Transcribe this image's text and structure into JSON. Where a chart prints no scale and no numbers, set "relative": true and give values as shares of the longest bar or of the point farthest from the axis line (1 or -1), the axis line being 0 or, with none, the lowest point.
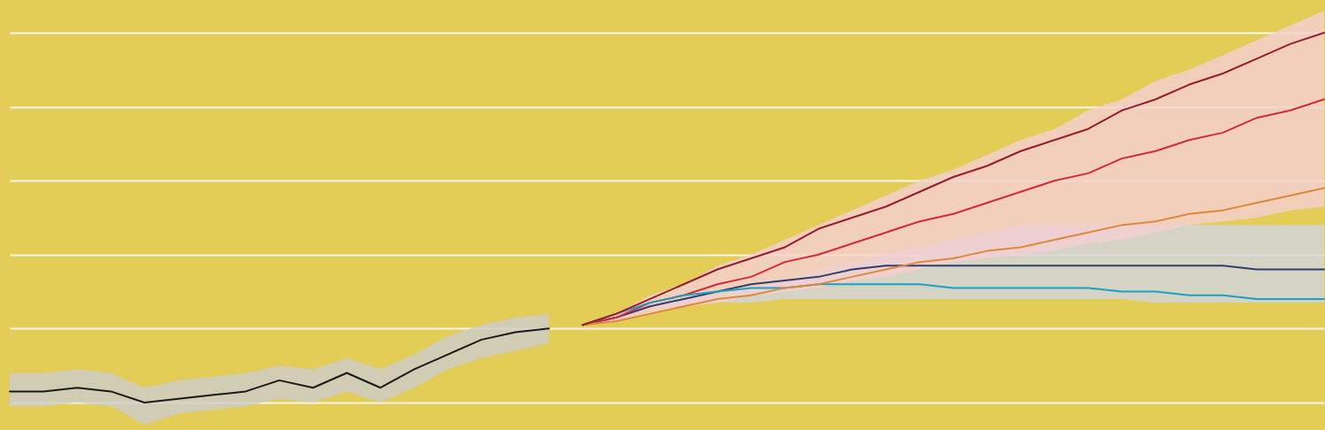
{
  "chart_data": {
    "type": "line",
    "relative": true,
    "grid": "y",
    "tick_labels": false,
    "categories": [
      null,
      null,
      null,
      null,
      null,
      null,
      null,
      null,
      null,
      null,
      null,
      null,
      null,
      null,
      null,
      null,
      null,
      null,
      null,
      null,
      null,
      null,
      null,
      null,
      null,
      null,
      null,
      null,
      null,
      null,
      null,
      null,
      null,
      null,
      null,
      null,
      null,
      null,
      null,
      null
    ],
    "series": [
      {
        "color": "#1a1a1a",
        "values": [
          0.03,
          0.03,
          0.04,
          0.03,
          0.0,
          0.01,
          0.02,
          0.03,
          0.06,
          0.04,
          0.08,
          0.04,
          0.09,
          0.13,
          0.17,
          0.19,
          0.2,
          null,
          null,
          null,
          null,
          null,
          null,
          null,
          null,
          null,
          null,
          null,
          null,
          null,
          null,
          null,
          null,
          null,
          null,
          null,
          null,
          null,
          null,
          null
        ],
        "lower": [
          -0.01,
          -0.01,
          0.0,
          -0.01,
          -0.06,
          -0.03,
          -0.02,
          -0.01,
          0.01,
          0.0,
          0.03,
          0.0,
          0.04,
          0.09,
          0.12,
          0.14,
          0.16,
          null,
          null,
          null,
          null,
          null,
          null,
          null,
          null,
          null,
          null,
          null,
          null,
          null,
          null,
          null,
          null,
          null,
          null,
          null,
          null,
          null,
          null,
          null
        ],
        "upper": [
          0.08,
          0.08,
          0.09,
          0.08,
          0.04,
          0.06,
          0.07,
          0.08,
          0.1,
          0.09,
          0.12,
          0.09,
          0.13,
          0.18,
          0.21,
          0.23,
          0.24,
          null,
          null,
          null,
          null,
          null,
          null,
          null,
          null,
          null,
          null,
          null,
          null,
          null,
          null,
          null,
          null,
          null,
          null,
          null,
          null,
          null,
          null,
          null
        ]
      },
      {
        "color": "#2e3f6e",
        "values": [
          null,
          null,
          null,
          null,
          null,
          null,
          null,
          null,
          null,
          null,
          null,
          null,
          null,
          null,
          null,
          null,
          null,
          0.21,
          0.23,
          0.26,
          0.28,
          0.3,
          0.32,
          0.33,
          0.34,
          0.36,
          0.37,
          0.37,
          0.37,
          0.37,
          0.37,
          0.37,
          0.37,
          0.37,
          0.37,
          0.37,
          0.37,
          0.36,
          0.36,
          0.36
        ],
        "lower": [
          null,
          null,
          null,
          null,
          null,
          null,
          null,
          null,
          null,
          null,
          null,
          null,
          null,
          null,
          null,
          null,
          null,
          0.21,
          0.23,
          0.26,
          0.26,
          0.27,
          0.27,
          0.28,
          0.28,
          0.28,
          0.28,
          0.28,
          0.28,
          0.28,
          0.28,
          0.28,
          0.28,
          0.28,
          0.27,
          0.27,
          0.27,
          0.27,
          0.27,
          0.27
        ],
        "upper": [
          null,
          null,
          null,
          null,
          null,
          null,
          null,
          null,
          null,
          null,
          null,
          null,
          null,
          null,
          null,
          null,
          null,
          0.21,
          0.23,
          0.26,
          0.28,
          0.29,
          0.31,
          0.33,
          0.36,
          0.38,
          0.4,
          0.42,
          0.44,
          0.46,
          0.48,
          0.48,
          0.48,
          0.48,
          0.48,
          0.48,
          0.48,
          0.48,
          0.48,
          0.48
        ]
      },
      {
        "color": "#d62a3a",
        "values": [
          null,
          null,
          null,
          null,
          null,
          null,
          null,
          null,
          null,
          null,
          null,
          null,
          null,
          null,
          null,
          null,
          null,
          0.21,
          0.23,
          0.27,
          0.29,
          0.32,
          0.34,
          0.38,
          0.4,
          0.43,
          0.46,
          0.49,
          0.51,
          0.54,
          0.57,
          0.6,
          0.62,
          0.66,
          0.68,
          0.71,
          0.73,
          0.77,
          0.79,
          0.82
        ],
        "lower": [
          null,
          null,
          null,
          null,
          null,
          null,
          null,
          null,
          null,
          null,
          null,
          null,
          null,
          null,
          null,
          null,
          null,
          0.21,
          0.22,
          0.24,
          0.26,
          0.27,
          0.29,
          0.3,
          0.31,
          0.33,
          0.34,
          0.36,
          0.38,
          0.39,
          0.4,
          0.41,
          0.43,
          0.44,
          0.46,
          0.48,
          0.49,
          0.5,
          0.52,
          0.53
        ],
        "upper": [
          null,
          null,
          null,
          null,
          null,
          null,
          null,
          null,
          null,
          null,
          null,
          null,
          null,
          null,
          null,
          null,
          null,
          0.21,
          0.24,
          0.29,
          0.32,
          0.37,
          0.4,
          0.44,
          0.48,
          0.52,
          0.56,
          0.6,
          0.63,
          0.67,
          0.71,
          0.74,
          0.79,
          0.82,
          0.87,
          0.9,
          0.94,
          0.98,
          1.02,
          1.06
        ]
      },
      {
        "color": "#1aa0c8",
        "values": [
          null,
          null,
          null,
          null,
          null,
          null,
          null,
          null,
          null,
          null,
          null,
          null,
          null,
          null,
          null,
          null,
          null,
          0.21,
          0.24,
          0.27,
          0.29,
          0.3,
          0.31,
          0.31,
          0.32,
          0.32,
          0.32,
          0.32,
          0.31,
          0.31,
          0.31,
          0.31,
          0.31,
          0.3,
          0.3,
          0.29,
          0.29,
          0.28,
          0.28,
          0.28
        ]
      },
      {
        "color": "#e0883a",
        "values": [
          null,
          null,
          null,
          null,
          null,
          null,
          null,
          null,
          null,
          null,
          null,
          null,
          null,
          null,
          null,
          null,
          null,
          0.21,
          0.22,
          0.24,
          0.26,
          0.28,
          0.29,
          0.31,
          0.32,
          0.34,
          0.36,
          0.38,
          0.39,
          0.41,
          0.42,
          0.44,
          0.46,
          0.48,
          0.49,
          0.51,
          0.52,
          0.54,
          0.56,
          0.58
        ]
      },
      {
        "color": "#9b1b30",
        "values": [
          null,
          null,
          null,
          null,
          null,
          null,
          null,
          null,
          null,
          null,
          null,
          null,
          null,
          null,
          null,
          null,
          null,
          0.21,
          0.24,
          0.28,
          0.32,
          0.36,
          0.39,
          0.42,
          0.47,
          0.5,
          0.53,
          0.57,
          0.61,
          0.64,
          0.68,
          0.71,
          0.74,
          0.79,
          0.82,
          0.86,
          0.89,
          0.93,
          0.97,
          1.0
        ]
      }
    ]
  }
}
